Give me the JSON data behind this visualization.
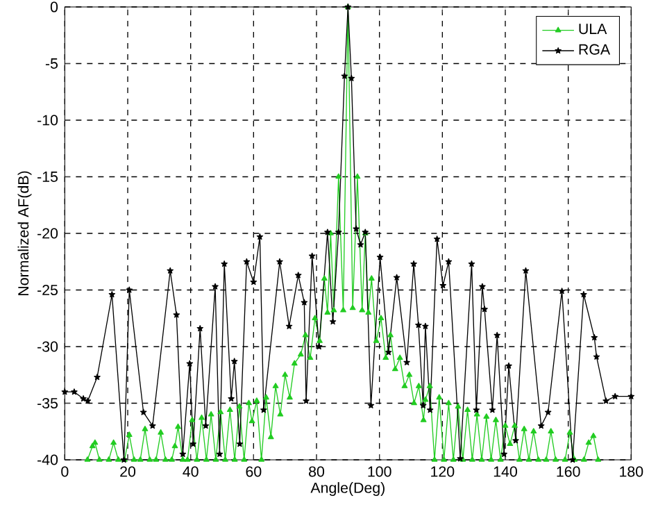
{
  "chart_data": {
    "type": "line",
    "xlabel": "Angle(Deg)",
    "ylabel": "Normalized AF(dB)",
    "xlim": [
      0,
      180
    ],
    "ylim": [
      -40,
      0
    ],
    "xticks": [
      0,
      20,
      40,
      60,
      80,
      100,
      120,
      140,
      160,
      180
    ],
    "yticks": [
      -40,
      -35,
      -30,
      -25,
      -20,
      -15,
      -10,
      -5,
      0
    ],
    "grid": true,
    "legend": "top right",
    "line_style": "solid",
    "series": [
      {
        "name": "ULA",
        "color": "#22cc22",
        "marker": "triangle",
        "x": [
          7.2,
          8.8,
          9.6,
          11,
          14,
          15.5,
          17,
          19,
          20.5,
          22,
          24,
          25.5,
          27,
          29,
          30.5,
          32,
          34,
          35,
          36,
          37.5,
          39,
          40.5,
          42,
          43.5,
          45,
          46.5,
          48,
          49.5,
          51,
          52.5,
          54,
          55.5,
          57,
          58.5,
          59.5,
          61,
          62.5,
          64,
          65.5,
          67,
          68.5,
          70,
          71.5,
          73,
          75,
          76.5,
          78,
          79.5,
          81,
          82.5,
          83.5,
          84.5,
          85.5,
          87,
          88.5,
          90,
          91.5,
          93,
          94.5,
          95.5,
          96.5,
          97.5,
          99,
          100.5,
          102,
          103.5,
          105,
          106.5,
          108,
          109.5,
          111,
          112.5,
          114,
          114.6,
          116,
          117.5,
          119,
          120.5,
          122,
          123.5,
          125,
          126.5,
          128,
          129.5,
          131,
          132.5,
          134,
          135.5,
          137,
          138.5,
          140,
          141.5,
          143,
          144.5,
          146,
          147.5,
          149,
          150.5,
          153,
          154.5,
          156,
          159,
          160.5,
          162,
          165,
          166.5,
          168,
          169.5
        ],
        "values": [
          -40,
          -38.8,
          -38.5,
          -40,
          -40,
          -38.5,
          -40,
          -40,
          -37.8,
          -40,
          -40,
          -37.3,
          -40,
          -40,
          -37.6,
          -40,
          -40,
          -38.8,
          -37.1,
          -40,
          -40,
          -36.5,
          -40,
          -36.3,
          -40,
          -36,
          -40,
          -35.8,
          -40,
          -35.6,
          -40,
          -35.3,
          -40,
          -35,
          -36.6,
          -34.8,
          -40,
          -34.5,
          -38,
          -33.5,
          -36,
          -32.5,
          -34.5,
          -31.5,
          -30.7,
          -29,
          -31,
          -27.5,
          -29.5,
          -24,
          -27,
          -20,
          -26.8,
          -15,
          -26.8,
          0,
          -26.6,
          -15,
          -26.8,
          -20,
          -27,
          -24,
          -29.5,
          -27.5,
          -31,
          -29,
          -32,
          -31,
          -33.5,
          -32.5,
          -35,
          -33.5,
          -36.5,
          -34.7,
          -33.5,
          -40,
          -34.5,
          -40,
          -35,
          -40,
          -35.3,
          -40,
          -35.6,
          -40,
          -36,
          -40,
          -36.2,
          -40,
          -36.5,
          -40,
          -37,
          -38.6,
          -37,
          -40,
          -37.3,
          -40,
          -37.5,
          -40,
          -40,
          -37.5,
          -40,
          -40,
          -37.6,
          -40,
          -40,
          -38.5,
          -37.9,
          -40
        ]
      },
      {
        "name": "RGA",
        "color": "#000000",
        "marker": "star",
        "x": [
          0,
          3,
          5.9,
          7.3,
          10.3,
          15,
          18.8,
          20.5,
          25,
          27.9,
          33.5,
          35.5,
          37.5,
          39.7,
          40.8,
          43,
          44.8,
          47.8,
          49.2,
          50.7,
          52.9,
          53.9,
          55.6,
          57.8,
          60,
          62,
          63.2,
          68.3,
          71.3,
          74.2,
          76.1,
          76.7,
          78.6,
          80.8,
          83.5,
          85.2,
          87,
          88.9,
          90,
          91.1,
          92.6,
          94,
          95.5,
          97.3,
          100.2,
          102.9,
          105.5,
          108.7,
          110.9,
          112.4,
          113.9,
          114.6,
          116.1,
          118.3,
          120.2,
          122,
          125.7,
          129.3,
          130.8,
          132.7,
          133.4,
          135.9,
          137.4,
          139.6,
          141.1,
          143.3,
          146.5,
          151.4,
          153.6,
          158,
          161.4,
          164.9,
          168.3,
          169,
          172,
          174.9,
          180
        ],
        "values": [
          -34,
          -34,
          -34.6,
          -34.8,
          -32.7,
          -25.4,
          -40,
          -25,
          -35.8,
          -37,
          -23.3,
          -27.2,
          -39.5,
          -31.5,
          -38.6,
          -28.4,
          -37,
          -24.7,
          -39.5,
          -22.7,
          -34.6,
          -31.3,
          -38.6,
          -22.5,
          -24.3,
          -20.3,
          -35.6,
          -22.5,
          -28.2,
          -23.7,
          -26.1,
          -34.8,
          -22,
          -30,
          -19.9,
          -27.8,
          -19.9,
          -6.1,
          0,
          -6.3,
          -19.6,
          -21,
          -19.9,
          -35.2,
          -22.1,
          -30.5,
          -23.9,
          -31.4,
          -22.7,
          -28.1,
          -35.2,
          -28.2,
          -35.6,
          -20.5,
          -24.6,
          -22.5,
          -39.9,
          -22.7,
          -35.6,
          -24.7,
          -26.7,
          -35.6,
          -29,
          -39.5,
          -31.7,
          -38.3,
          -23.3,
          -37,
          -35.8,
          -25.1,
          -40,
          -25.4,
          -29.2,
          -30.9,
          -34.8,
          -34.4,
          -34.4
        ]
      }
    ]
  }
}
